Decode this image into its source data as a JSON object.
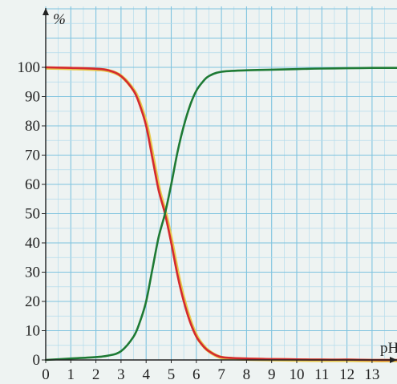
{
  "chart_data": {
    "type": "line",
    "xlabel": "pH",
    "ylabel": "%",
    "xlim": [
      0,
      14
    ],
    "ylim": [
      0,
      100
    ],
    "x_ticks": [
      "0",
      "1",
      "2",
      "3",
      "4",
      "5",
      "6",
      "7",
      "8",
      "9",
      "10",
      "11",
      "12",
      "13"
    ],
    "y_ticks": [
      "0",
      "10",
      "20",
      "30",
      "40",
      "50",
      "60",
      "70",
      "80",
      "90",
      "100"
    ],
    "grid": true,
    "series": [
      {
        "color": "#d4292f",
        "highlight": "#e8c84a",
        "x": [
          0,
          1,
          2,
          2.5,
          3,
          3.5,
          3.75,
          4,
          4.25,
          4.5,
          4.75,
          5,
          5.25,
          5.5,
          5.75,
          6,
          6.25,
          6.5,
          7,
          8,
          9,
          10,
          11,
          12,
          13,
          14
        ],
        "y": [
          100,
          99.8,
          99.5,
          99,
          97,
          92,
          87,
          80,
          69,
          58,
          50,
          40,
          29,
          20,
          13,
          8,
          5,
          3,
          1,
          0.5,
          0.3,
          0.2,
          0.1,
          0.1,
          0,
          0
        ]
      },
      {
        "color": "#1e7a34",
        "x": [
          0,
          1,
          2,
          2.5,
          3,
          3.5,
          3.75,
          4,
          4.25,
          4.5,
          4.75,
          5,
          5.25,
          5.5,
          5.75,
          6,
          6.25,
          6.5,
          7,
          8,
          9,
          10,
          11,
          12,
          13,
          14
        ],
        "y": [
          0,
          0.5,
          1,
          1.5,
          3,
          8,
          13,
          20,
          31,
          42,
          50,
          60,
          71,
          80,
          87,
          92,
          95,
          97,
          98.5,
          99,
          99.2,
          99.4,
          99.6,
          99.7,
          99.8,
          99.8
        ]
      }
    ]
  }
}
